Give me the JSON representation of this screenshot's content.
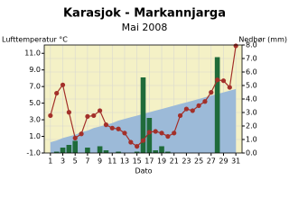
{
  "chart_data": {
    "type": "combo",
    "title": "Karasjok - Markannjarga",
    "subtitle": "Mai 2008",
    "y_label": "Lufttemperatur °C",
    "y2_label": "Nedbør (mm)",
    "x_label": "Dato",
    "x": [
      1,
      2,
      3,
      4,
      5,
      6,
      7,
      8,
      9,
      10,
      11,
      12,
      13,
      14,
      15,
      16,
      17,
      18,
      19,
      20,
      21,
      22,
      23,
      24,
      25,
      26,
      27,
      28,
      29,
      30,
      31
    ],
    "xlim": [
      0,
      32
    ],
    "xticks": [
      1,
      3,
      5,
      7,
      9,
      11,
      13,
      15,
      17,
      19,
      21,
      23,
      25,
      27,
      29,
      31
    ],
    "ylim": [
      -1,
      12
    ],
    "yticks": [
      {
        "value": -1,
        "label": "-1.0"
      },
      {
        "value": 1,
        "label": "1.0"
      },
      {
        "value": 3,
        "label": "3.0"
      },
      {
        "value": 5,
        "label": "5.0"
      },
      {
        "value": 7,
        "label": "7.0"
      },
      {
        "value": 9,
        "label": "9.0"
      },
      {
        "value": 11,
        "label": "11.0"
      }
    ],
    "y2lim": [
      0,
      8
    ],
    "y2ticks": [
      {
        "value": 0,
        "label": "0.0"
      },
      {
        "value": 1,
        "label": "1.0"
      },
      {
        "value": 2,
        "label": "2.0"
      },
      {
        "value": 3,
        "label": "3.0"
      },
      {
        "value": 4,
        "label": "4.0"
      },
      {
        "value": 5,
        "label": "5.0"
      },
      {
        "value": 6,
        "label": "6.0"
      },
      {
        "value": 7,
        "label": "7.0"
      },
      {
        "value": 8,
        "label": "8.0"
      }
    ],
    "grid": true,
    "background": "#f4f1c6",
    "series": [
      {
        "type": "area",
        "color": "#9cbad8",
        "values": [
          0.3,
          0.5,
          0.8,
          1.0,
          1.2,
          1.5,
          1.7,
          2.0,
          2.2,
          2.4,
          2.6,
          2.9,
          3.1,
          3.3,
          3.5,
          3.7,
          3.9,
          4.1,
          4.3,
          4.5,
          4.7,
          4.9,
          5.1,
          5.3,
          5.5,
          5.7,
          5.9,
          6.1,
          6.3,
          6.5,
          6.7
        ]
      },
      {
        "type": "bar",
        "axis": "y2",
        "color": "#1f6b3a",
        "values": [
          0,
          0.1,
          0.4,
          0.6,
          0.9,
          0,
          0.4,
          0,
          0.5,
          0.2,
          0,
          0.1,
          0,
          0,
          0.1,
          5.6,
          2.6,
          0.2,
          0.5,
          0.1,
          0,
          0,
          0,
          0,
          0,
          0,
          0,
          7.1,
          0,
          0,
          0
        ]
      },
      {
        "type": "line",
        "color": "#a3302a",
        "values": [
          3.5,
          6.2,
          7.2,
          3.9,
          0.8,
          1.3,
          3.4,
          3.5,
          4.1,
          2.4,
          2.0,
          1.9,
          1.4,
          0.3,
          -0.2,
          0.5,
          1.5,
          1.6,
          1.4,
          1.0,
          1.4,
          3.5,
          4.3,
          4.1,
          4.7,
          5.2,
          6.3,
          7.8,
          7.7,
          6.9,
          11.9
        ]
      }
    ]
  }
}
